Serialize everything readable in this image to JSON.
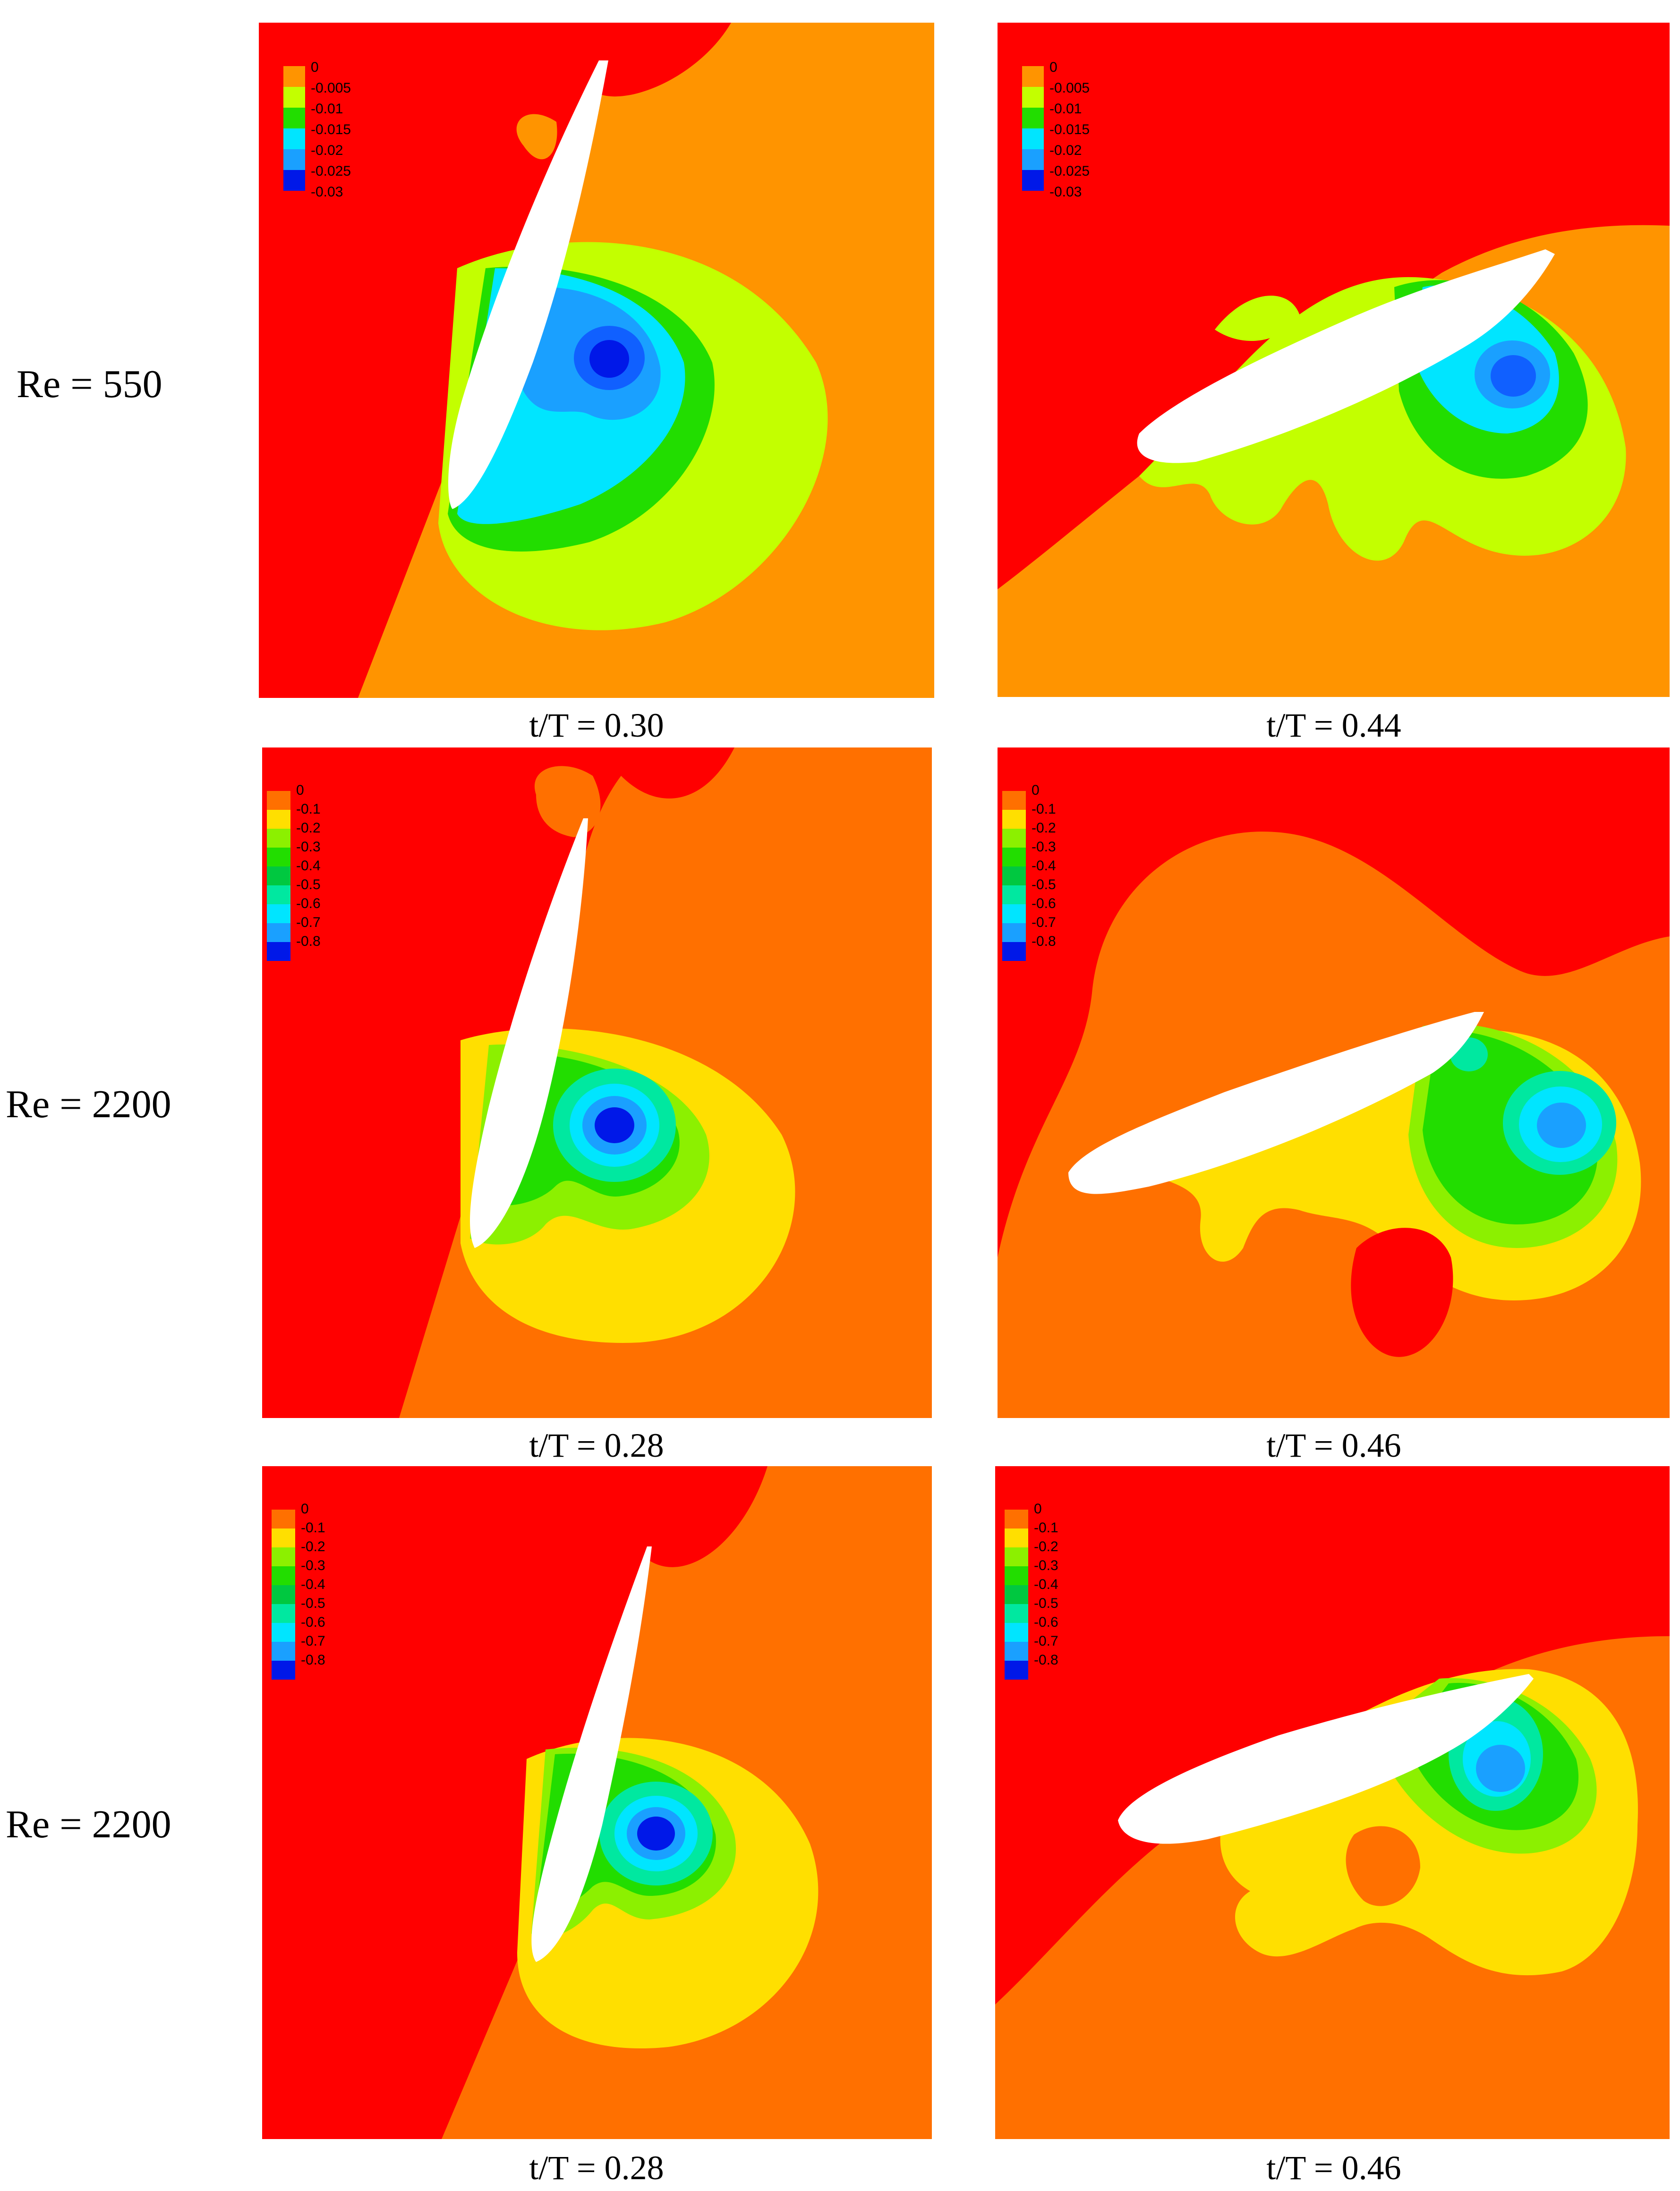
{
  "figure": {
    "rows": [
      {
        "label": "Re = 550",
        "legend": [
          "0",
          "-0.005",
          "-0.01",
          "-0.015",
          "-0.02",
          "-0.025",
          "-0.03"
        ],
        "panels": [
          {
            "caption": "t/T = 0.30"
          },
          {
            "caption": "t/T = 0.44"
          }
        ]
      },
      {
        "label": "Re = 2200",
        "legend": [
          "0",
          "-0.1",
          "-0.2",
          "-0.3",
          "-0.4",
          "-0.5",
          "-0.6",
          "-0.7",
          "-0.8"
        ],
        "panels": [
          {
            "caption": "t/T = 0.28"
          },
          {
            "caption": "t/T = 0.46"
          }
        ]
      },
      {
        "label": "Re = 2200",
        "legend": [
          "0",
          "-0.1",
          "-0.2",
          "-0.3",
          "-0.4",
          "-0.5",
          "-0.6",
          "-0.7",
          "-0.8"
        ],
        "panels": [
          {
            "caption": "t/T = 0.28"
          },
          {
            "caption": "t/T = 0.46"
          }
        ]
      }
    ]
  },
  "colors": {
    "red": "#ff0000",
    "orange_dark": "#ff7000",
    "orange": "#ff9400",
    "yellow": "#ffdf00",
    "yellow_green": "#c3ff00",
    "green_light": "#8cf000",
    "green": "#22dd00",
    "cyan_green": "#00e8a0",
    "cyan": "#00e5ff",
    "blue_light": "#1aa0ff",
    "blue": "#1060ff",
    "blue_dark": "#0018e8",
    "airfoil": "#ffffff"
  }
}
